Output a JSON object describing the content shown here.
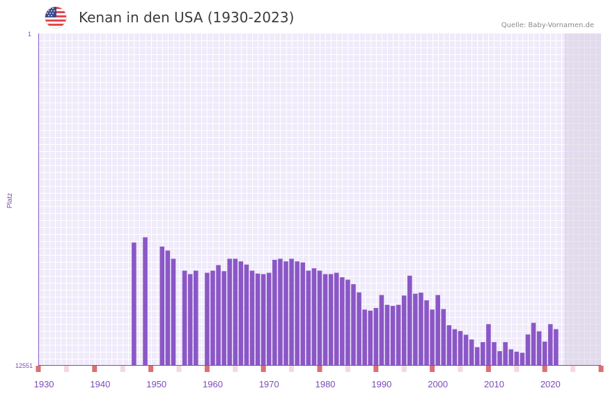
{
  "header": {
    "title": "Kenan in den USA (1930-2023)",
    "source": "Quelle: Baby-Vornamen.de",
    "flag_icon": "us-flag-icon"
  },
  "chart_data": {
    "type": "bar",
    "title": "Kenan in den USA (1930-2023)",
    "xlabel": "",
    "ylabel": "Platz",
    "y_inverted": true,
    "ylim": [
      1,
      12551
    ],
    "y_tick_labels": [
      "1",
      "12551"
    ],
    "xlim": [
      1929,
      2029
    ],
    "x_tick_labels": [
      "1930",
      "1940",
      "1950",
      "1960",
      "1970",
      "1980",
      "1990",
      "2000",
      "2010",
      "2020"
    ],
    "shaded_future_from": 2022.5,
    "x": [
      1946,
      1948,
      1951,
      1952,
      1953,
      1955,
      1956,
      1957,
      1959,
      1960,
      1961,
      1962,
      1963,
      1964,
      1965,
      1966,
      1967,
      1968,
      1969,
      1970,
      1971,
      1972,
      1973,
      1974,
      1975,
      1976,
      1977,
      1978,
      1979,
      1980,
      1981,
      1982,
      1983,
      1984,
      1985,
      1986,
      1987,
      1988,
      1989,
      1990,
      1991,
      1992,
      1993,
      1994,
      1995,
      1996,
      1997,
      1998,
      1999,
      2000,
      2001,
      2002,
      2003,
      2004,
      2005,
      2006,
      2007,
      2008,
      2009,
      2010,
      2011,
      2012,
      2013,
      2014,
      2015,
      2016,
      2017,
      2018,
      2019,
      2020,
      2021
    ],
    "values": [
      7900,
      7700,
      8050,
      8200,
      8510,
      8960,
      9090,
      8960,
      9040,
      8960,
      8750,
      8980,
      8510,
      8510,
      8610,
      8730,
      8960,
      9070,
      9090,
      9040,
      8550,
      8510,
      8610,
      8510,
      8610,
      8650,
      8960,
      8870,
      8960,
      9090,
      9090,
      9040,
      9210,
      9300,
      9470,
      9780,
      10430,
      10470,
      10370,
      9880,
      10250,
      10290,
      10250,
      9900,
      9150,
      9830,
      9790,
      10080,
      10430,
      9880,
      10410,
      11020,
      11170,
      11240,
      11380,
      11560,
      11850,
      11660,
      10980,
      11660,
      12000,
      11660,
      11930,
      12020,
      12060,
      11370,
      10930,
      11250,
      11640,
      10980,
      11170
    ]
  }
}
